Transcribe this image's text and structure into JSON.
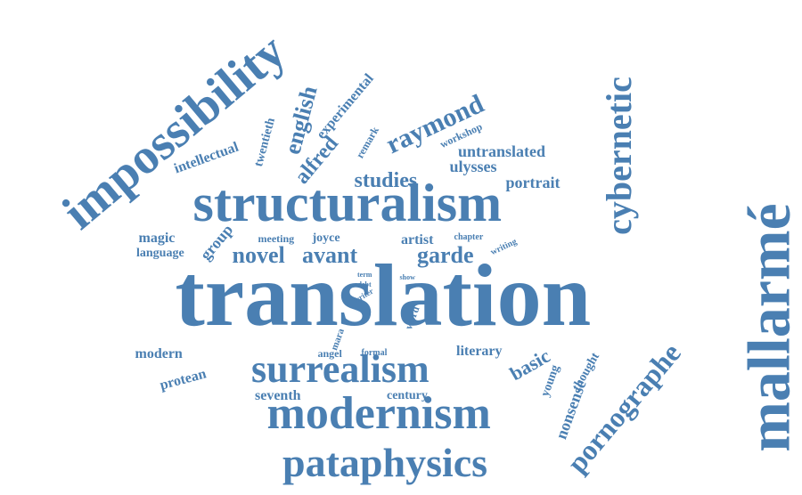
{
  "color": "#4a7fb2",
  "words": [
    {
      "id": "translation",
      "text": "translation",
      "size": 100,
      "rot": 0
    },
    {
      "id": "mallarme",
      "text": "mallarmé",
      "size": 68,
      "rot": -90
    },
    {
      "id": "structuralism",
      "text": "structuralism",
      "size": 60,
      "rot": 0
    },
    {
      "id": "impossibility",
      "text": "impossibility",
      "size": 56,
      "rot": -40
    },
    {
      "id": "modernism",
      "text": "modernism",
      "size": 52,
      "rot": 0
    },
    {
      "id": "pataphysics",
      "text": "pataphysics",
      "size": 46,
      "rot": 0
    },
    {
      "id": "surrealism",
      "text": "surrealism",
      "size": 44,
      "rot": 0
    },
    {
      "id": "cybernetic",
      "text": "cybernetic",
      "size": 40,
      "rot": -90
    },
    {
      "id": "pornographe",
      "text": "pornographe",
      "size": 32,
      "rot": -50
    },
    {
      "id": "raymond",
      "text": "raymond",
      "size": 30,
      "rot": -25
    },
    {
      "id": "english",
      "text": "english",
      "size": 26,
      "rot": -75
    },
    {
      "id": "novel",
      "text": "novel",
      "size": 26,
      "rot": 0
    },
    {
      "id": "avant",
      "text": "avant",
      "size": 26,
      "rot": 0
    },
    {
      "id": "garde",
      "text": "garde",
      "size": 26,
      "rot": 0
    },
    {
      "id": "alfred",
      "text": "alfred",
      "size": 24,
      "rot": -50
    },
    {
      "id": "studies",
      "text": "studies",
      "size": 24,
      "rot": 0
    },
    {
      "id": "basic",
      "text": "basic",
      "size": 22,
      "rot": -30
    },
    {
      "id": "nonsense",
      "text": "nonsense",
      "size": 18,
      "rot": -70
    },
    {
      "id": "portrait",
      "text": "portrait",
      "size": 18,
      "rot": 0
    },
    {
      "id": "untranslated",
      "text": "untranslated",
      "size": 18,
      "rot": 0
    },
    {
      "id": "ulysses",
      "text": "ulysses",
      "size": 18,
      "rot": 0
    },
    {
      "id": "group",
      "text": "group",
      "size": 18,
      "rot": -50
    },
    {
      "id": "experimental",
      "text": "experimental",
      "size": 16,
      "rot": -50
    },
    {
      "id": "intellectual",
      "text": "intellectual",
      "size": 16,
      "rot": -20
    },
    {
      "id": "twentieth",
      "text": "twentieth",
      "size": 14,
      "rot": -75
    },
    {
      "id": "modern",
      "text": "modern",
      "size": 16,
      "rot": 0
    },
    {
      "id": "protean",
      "text": "protean",
      "size": 16,
      "rot": -15
    },
    {
      "id": "seventh",
      "text": "seventh",
      "size": 16,
      "rot": 0
    },
    {
      "id": "century",
      "text": "century",
      "size": 14,
      "rot": 0
    },
    {
      "id": "literary",
      "text": "literary",
      "size": 16,
      "rot": 0
    },
    {
      "id": "young",
      "text": "young",
      "size": 14,
      "rot": -70
    },
    {
      "id": "thought",
      "text": "thought",
      "size": 14,
      "rot": -60
    },
    {
      "id": "magic",
      "text": "magic",
      "size": 16,
      "rot": 0
    },
    {
      "id": "language",
      "text": "language",
      "size": 14,
      "rot": 0
    },
    {
      "id": "joyce",
      "text": "joyce",
      "size": 14,
      "rot": 0
    },
    {
      "id": "meeting",
      "text": "meeting",
      "size": 12,
      "rot": 0
    },
    {
      "id": "artist",
      "text": "artist",
      "size": 16,
      "rot": 0
    },
    {
      "id": "remark",
      "text": "remark",
      "size": 12,
      "rot": -60
    },
    {
      "id": "workshop",
      "text": "workshop",
      "size": 12,
      "rot": -25
    },
    {
      "id": "chapter",
      "text": "chapter",
      "size": 10,
      "rot": 0
    },
    {
      "id": "writing",
      "text": "writing",
      "size": 10,
      "rot": -25
    },
    {
      "id": "term",
      "text": "term",
      "size": 8,
      "rot": 0
    },
    {
      "id": "debt",
      "text": "debt",
      "size": 8,
      "rot": 0
    },
    {
      "id": "writer",
      "text": "writer",
      "size": 9,
      "rot": -30
    },
    {
      "id": "show",
      "text": "show",
      "size": 8,
      "rot": 0
    },
    {
      "id": "mara",
      "text": "mara",
      "size": 11,
      "rot": -70
    },
    {
      "id": "angel",
      "text": "angel",
      "size": 12,
      "rot": 0
    },
    {
      "id": "formal",
      "text": "formal",
      "size": 10,
      "rot": 0
    },
    {
      "id": "word",
      "text": "word",
      "size": 12,
      "rot": -70
    }
  ]
}
